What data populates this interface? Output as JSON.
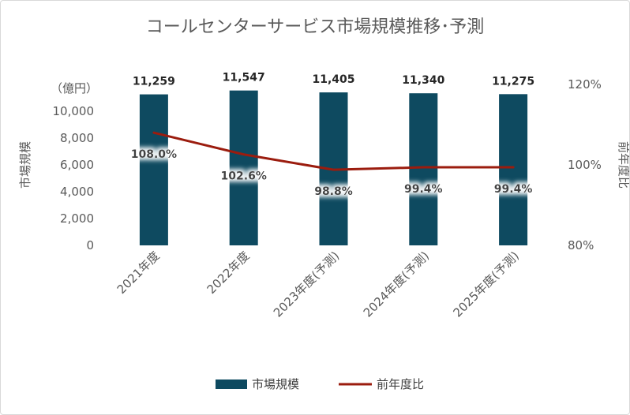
{
  "chart_data": {
    "type": "bar",
    "title": "コールセンターサービス市場規模推移･予測",
    "categories": [
      "2021年度",
      "2022年度",
      "2023年度(予測)",
      "2024年度(予測)",
      "2025年度(予測)"
    ],
    "series": [
      {
        "name": "市場規模",
        "type": "bar",
        "axis": "left",
        "values": [
          11259,
          11547,
          11405,
          11340,
          11275
        ],
        "labels": [
          "11,259",
          "11,547",
          "11,405",
          "11,340",
          "11,275"
        ],
        "color": "#0e4a60"
      },
      {
        "name": "前年度比",
        "type": "line",
        "axis": "right",
        "values": [
          108.0,
          102.6,
          98.8,
          99.4,
          99.4
        ],
        "labels": [
          "108.0%",
          "102.6%",
          "98.8%",
          "99.4%",
          "99.4%"
        ],
        "color": "#9b1c0e"
      }
    ],
    "y_left": {
      "label": "市場規模",
      "unit": "（億円）",
      "range": [
        0,
        12000
      ],
      "ticks": [
        0,
        2000,
        4000,
        6000,
        8000,
        10000
      ],
      "tick_labels": [
        "0",
        "2,000",
        "4,000",
        "6,000",
        "8,000",
        "10,000"
      ]
    },
    "y_right": {
      "label": "前年度比",
      "range": [
        80,
        120
      ],
      "ticks": [
        80,
        100,
        120
      ],
      "tick_labels": [
        "80%",
        "100%",
        "120%"
      ]
    },
    "grid": false,
    "legend": "bottom"
  }
}
